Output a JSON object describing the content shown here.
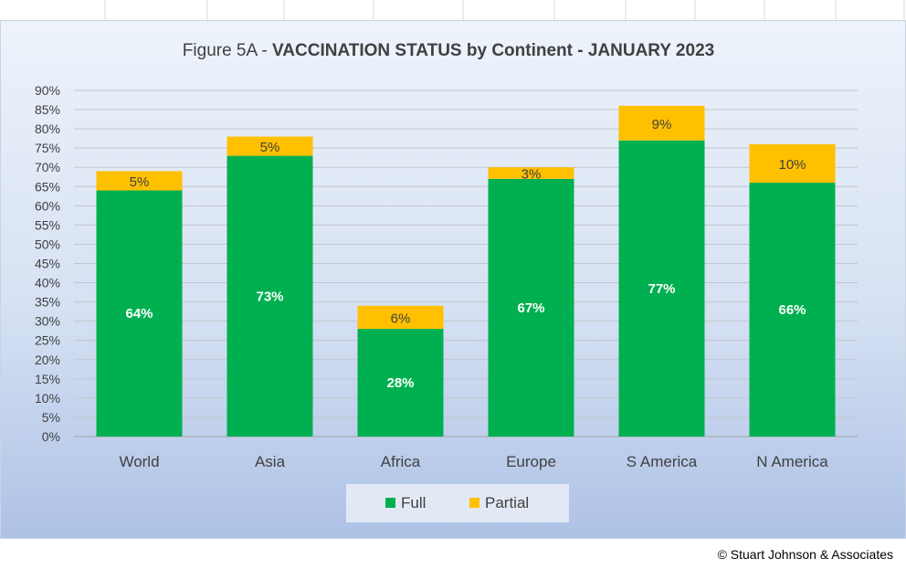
{
  "chart_data": {
    "type": "bar",
    "stacked": true,
    "title_prefix": "Figure 5A - ",
    "title_main": "VACCINATION STATUS by Continent - JANUARY 2023",
    "categories": [
      "World",
      "Asia",
      "Africa",
      "Europe",
      "S America",
      "N America"
    ],
    "series": [
      {
        "name": "Full",
        "values": [
          64,
          73,
          28,
          67,
          77,
          66
        ],
        "labels": [
          "64%",
          "73%",
          "28%",
          "67%",
          "77%",
          "66%"
        ],
        "color": "#00b050"
      },
      {
        "name": "Partial",
        "values": [
          5,
          5,
          6,
          3,
          9,
          10
        ],
        "labels": [
          "5%",
          "5%",
          "6%",
          "3%",
          "9%",
          "10%"
        ],
        "color": "#ffc000"
      }
    ],
    "ylim": [
      0,
      90
    ],
    "yticks": [
      "0%",
      "5%",
      "10%",
      "15%",
      "20%",
      "25%",
      "30%",
      "35%",
      "40%",
      "45%",
      "50%",
      "55%",
      "60%",
      "65%",
      "70%",
      "75%",
      "80%",
      "85%",
      "90%"
    ],
    "grid": true,
    "legend": "bottom"
  },
  "footer": {
    "copyright": "© Stuart Johnson & Associates"
  }
}
